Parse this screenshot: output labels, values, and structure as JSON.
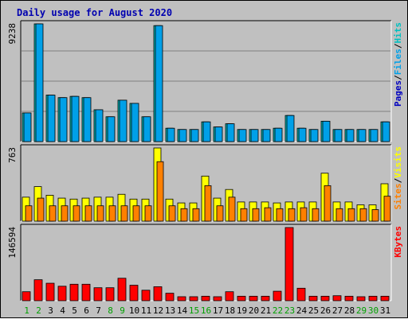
{
  "chart_data": [
    {
      "type": "bar",
      "title": "Daily usage for August 2020",
      "ymax_label": "9238",
      "ylim": [
        0,
        9238
      ],
      "right_labels": [
        "Pages",
        "Files",
        "Hits"
      ],
      "categories": [
        "1",
        "2",
        "3",
        "4",
        "5",
        "6",
        "7",
        "8",
        "9",
        "10",
        "11",
        "12",
        "13",
        "14",
        "15",
        "16",
        "17",
        "18",
        "19",
        "20",
        "21",
        "22",
        "23",
        "24",
        "25",
        "26",
        "27",
        "28",
        "29",
        "30",
        "31"
      ],
      "weekend_days": [
        "1",
        "2",
        "8",
        "9",
        "15",
        "16",
        "22",
        "23",
        "29",
        "30"
      ],
      "series": [
        {
          "name": "Hits",
          "color": "#00c0c0",
          "values": [
            2250,
            9238,
            3650,
            3450,
            3550,
            3450,
            2500,
            1950,
            3250,
            3000,
            1950,
            9100,
            1050,
            950,
            950,
            1550,
            1150,
            1400,
            950,
            950,
            950,
            1050,
            2050,
            1050,
            950,
            1600,
            950,
            950,
            950,
            950,
            1550
          ]
        },
        {
          "name": "Files",
          "color": "#00a0e8",
          "values": [
            2250,
            9238,
            3650,
            3450,
            3550,
            3450,
            2500,
            1950,
            3250,
            3000,
            1950,
            9100,
            1050,
            950,
            950,
            1550,
            1150,
            1400,
            950,
            950,
            950,
            1050,
            2050,
            1050,
            950,
            1600,
            950,
            950,
            950,
            950,
            1550
          ]
        },
        {
          "name": "Pages",
          "color": "#0000c0",
          "values": [
            0,
            0,
            0,
            0,
            0,
            0,
            0,
            0,
            0,
            0,
            0,
            0,
            0,
            0,
            0,
            0,
            0,
            0,
            0,
            0,
            0,
            0,
            0,
            0,
            0,
            0,
            0,
            0,
            0,
            0,
            0
          ]
        }
      ]
    },
    {
      "type": "bar",
      "ymax_label": "763",
      "ylim": [
        0,
        763
      ],
      "right_labels": [
        "Sites",
        "Visits"
      ],
      "series": [
        {
          "name": "Visits",
          "color": "#ffff00",
          "values": [
            250,
            360,
            270,
            240,
            230,
            240,
            250,
            250,
            280,
            230,
            230,
            763,
            230,
            190,
            190,
            470,
            240,
            330,
            200,
            200,
            200,
            190,
            200,
            200,
            200,
            500,
            200,
            200,
            170,
            170,
            390
          ]
        },
        {
          "name": "Sites",
          "color": "#ff8000",
          "values": [
            160,
            240,
            160,
            160,
            160,
            160,
            160,
            160,
            160,
            160,
            160,
            620,
            160,
            130,
            130,
            370,
            160,
            250,
            130,
            130,
            140,
            130,
            130,
            140,
            130,
            370,
            130,
            130,
            130,
            120,
            260
          ]
        }
      ]
    },
    {
      "type": "bar",
      "ymax_label": "146594",
      "ylim": [
        0,
        146594
      ],
      "right_labels": [
        "KBytes"
      ],
      "series": [
        {
          "name": "KBytes",
          "color": "#ff0000",
          "values": [
            18000,
            42000,
            35000,
            29000,
            33000,
            33000,
            26000,
            26000,
            45000,
            31000,
            21000,
            28000,
            15000,
            8000,
            8000,
            9000,
            8000,
            18000,
            9000,
            9000,
            9000,
            19000,
            146594,
            25000,
            9000,
            9000,
            10000,
            9000,
            8000,
            9000,
            9000
          ]
        }
      ]
    }
  ]
}
